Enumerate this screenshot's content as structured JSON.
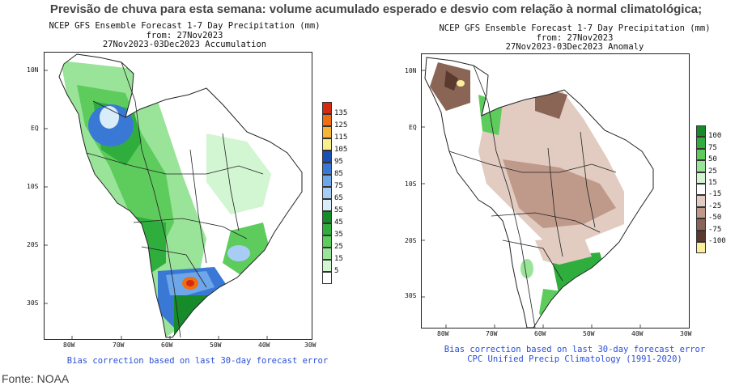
{
  "headline": "Previsão de chuva para esta semana: volume acumulado esperado e desvio com relação à normal climatológica;",
  "source": "Fonte: NOAA",
  "colors": {
    "land_lines": "#222222",
    "footer_text": "#2b4fd6"
  },
  "maps": [
    {
      "id": "accumulation",
      "title_lines": [
        "NCEP GFS Ensemble Forecast 1-7 Day Precipitation (mm)",
        "from: 27Nov2023",
        "27Nov2023-03Dec2023 Accumulation"
      ],
      "lat_labels": [
        "10N",
        "EQ",
        "10S",
        "20S",
        "30S"
      ],
      "lon_labels": [
        "80W",
        "70W",
        "60W",
        "50W",
        "40W",
        "30W"
      ],
      "footer_lines": [
        "Bias correction based on last 30-day forecast error"
      ],
      "legend": [
        {
          "label": "135",
          "color": "#d42a12"
        },
        {
          "label": "125",
          "color": "#ef6e12"
        },
        {
          "label": "115",
          "color": "#f7b437"
        },
        {
          "label": "105",
          "color": "#fbee8c"
        },
        {
          "label": "95",
          "color": "#1a4fb4"
        },
        {
          "label": "85",
          "color": "#3a78d6"
        },
        {
          "label": "75",
          "color": "#6ea6ea"
        },
        {
          "label": "65",
          "color": "#a7cdf4"
        },
        {
          "label": "55",
          "color": "#d8ecfa"
        },
        {
          "label": "45",
          "color": "#178a2a"
        },
        {
          "label": "35",
          "color": "#2fae3e"
        },
        {
          "label": "25",
          "color": "#5dcc5d"
        },
        {
          "label": "15",
          "color": "#9ae49a"
        },
        {
          "label": "5",
          "color": "#d2f5d2"
        },
        {
          "label": "",
          "color": "#ffffff"
        }
      ]
    },
    {
      "id": "anomaly",
      "title_lines": [
        "NCEP GFS Ensemble Forecast 1-7 Day Precipitation (mm)",
        "from: 27Nov2023",
        "27Nov2023-03Dec2023 Anomaly"
      ],
      "lat_labels": [
        "10N",
        "EQ",
        "10S",
        "20S",
        "30S"
      ],
      "lon_labels": [
        "80W",
        "70W",
        "60W",
        "50W",
        "40W",
        "30W"
      ],
      "footer_lines": [
        "Bias correction based on last 30-day forecast error",
        "CPC Unified Precip Climatology (1991-2020)"
      ],
      "legend": [
        {
          "label": "100",
          "color": "#178a2a"
        },
        {
          "label": "75",
          "color": "#2fae3e"
        },
        {
          "label": "50",
          "color": "#5dcc5d"
        },
        {
          "label": "25",
          "color": "#9ae49a"
        },
        {
          "label": "15",
          "color": "#d2f5d2"
        },
        {
          "label": "-15",
          "color": "#ffffff"
        },
        {
          "label": "-25",
          "color": "#e2cbc0"
        },
        {
          "label": "-50",
          "color": "#bf9a8a"
        },
        {
          "label": "-75",
          "color": "#8a6556"
        },
        {
          "label": "-100",
          "color": "#5a3a2c"
        },
        {
          "label": "",
          "color": "#fbef9c"
        }
      ]
    }
  ]
}
